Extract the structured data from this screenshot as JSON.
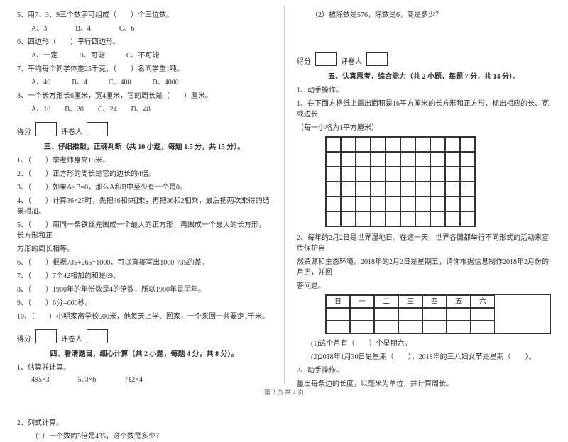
{
  "left": {
    "q5": "5、用7、3、9三个数字可组成（　　）个三位数。",
    "q5opts": "A、3　　　　B、4　　　　C、6",
    "q6": "6、四边形（　　）平行四边形。",
    "q6opts": "A、一定　　　B、可能　　　C、不可能",
    "q7": "7、平均每个同学体重25千克，（　　）名同学重1吨。",
    "q7opts": "A、40　　　B、4　　　C、400　　　D、4000",
    "q8": "8、一个长方形长6厘米，宽4厘米，它的周长是（　　）厘米。",
    "q8opts": "A、10　　B、20　　C、24　　D、48",
    "score_label": "得分",
    "reviewer_label": "评卷人",
    "sec3_title": "三、仔细推敲，正确判断（共 10 小题，每题 1.5 分，共 15 分）。",
    "j1": "1、（　　）李老师身高15米。",
    "j2": "2、（　　）正方形的周长是它的边长的4倍。",
    "j3": "3、（　　）如果A×B=0，那么A和B中至少有一个是0。",
    "j4": "4、（　　）计算36×25时，先把36和5相乘，再把36和2相乘，最后把两次乘得的结果相加。",
    "j5a": "5、（　　）用同一条铁丝先围成一个最大的正方形，再围成一个最大的长方形，长方形和正",
    "j5b": "方形的周长相等。",
    "j6": "6、（　　）根据735+265=1000，可以直接写出1000-735的差。",
    "j7": "7、（　　）7个42相加的和是69。",
    "j8": "8、（　　）1900年的年份数是4的倍数，所以1900年是闰年。",
    "j9": "9、（　　）6分=600秒。",
    "j10": "10、（　　）小明家离学校500米，他每天上学、回家，一个来回一共要走1千米。",
    "sec4_title": "四、看清题目，细心计算（共 2 小题，每题 4 分，共 8 分）。",
    "c1": "1、估算并计算。",
    "c1a": "495×3",
    "c1b": "503×6",
    "c1c": "712×4",
    "c2": "2、列式计算。",
    "c2a": "（1）一个数的5倍是435，这个数是多少？"
  },
  "right": {
    "c2b": "（2）被除数是576，除数是6，商是多少？",
    "score_label": "得分",
    "reviewer_label": "评卷人",
    "sec5_title": "五、认真思考，综合能力（共 2 小题，每题 7 分，共 14 分）。",
    "p1": "1、动手操作。",
    "p1a": "1、在下面方格纸上画出面积是16平方厘米的长方形和正方形，标出相应的长、宽或边长",
    "p1b": "（每一小格为1平方厘米）",
    "p2a": "2、每年的2月2日是世界湿地日。在这一天，世界各国都举行不同形式的活动来宣传保护自",
    "p2b": "然资源和生态环境。2018年的2月2日是星期五，请你根据信息制作2018年2月份的月历，并回",
    "p2c": "答问题。",
    "cal": [
      "日",
      "一",
      "二",
      "三",
      "四",
      "五",
      "六"
    ],
    "q1": "(1)这个月有（　　）个星期六。",
    "q2": "(2)2018年1月30日是星期（　　），2018年的三八妇女节是星期（　　）。",
    "p3": "2、动手操作。",
    "p3a": "量出每条边的长度，以毫米为单位，并计算周长。"
  },
  "footer": "第 2 页 共 4 页",
  "colors": {
    "text": "#333333",
    "border": "#333333",
    "divider": "#cccccc",
    "bg": "#ffffff"
  }
}
